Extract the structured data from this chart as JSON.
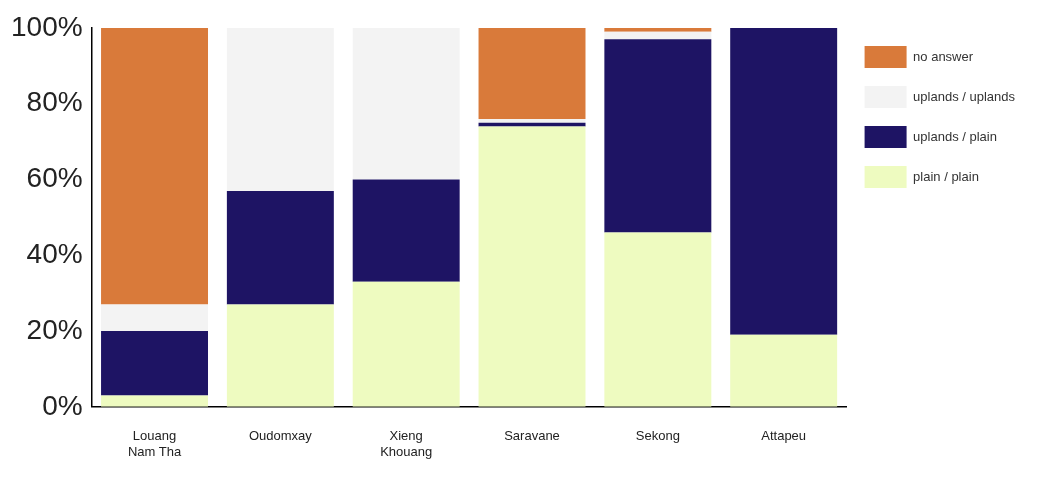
{
  "chart_data": {
    "type": "bar",
    "stacked": true,
    "categories": [
      "Louang Nam Tha",
      "Oudomxay",
      "Xieng Khouang",
      "Saravane",
      "Sekong",
      "Attapeu"
    ],
    "series": [
      {
        "name": "plain / plain",
        "color": "#eefbc0",
        "values": [
          3,
          27,
          33,
          74,
          46,
          19
        ]
      },
      {
        "name": "uplands / plain",
        "color": "#1e1464",
        "values": [
          17,
          30,
          27,
          1,
          51,
          81
        ]
      },
      {
        "name": "uplands / uplands",
        "color": "#f3f3f3",
        "values": [
          7,
          43,
          40,
          1,
          2,
          0
        ]
      },
      {
        "name": "no answer",
        "color": "#d97a3a",
        "values": [
          73,
          0,
          0,
          24,
          1,
          0
        ]
      }
    ],
    "ylim": [
      0,
      100
    ],
    "yticks": [
      {
        "value": 0,
        "label": "0%"
      },
      {
        "value": 20,
        "label": "20%"
      },
      {
        "value": 40,
        "label": "40%"
      },
      {
        "value": 60,
        "label": "60%"
      },
      {
        "value": 80,
        "label": "80%"
      },
      {
        "value": 100,
        "label": "100%"
      }
    ],
    "grid": false,
    "legend": "top right"
  }
}
